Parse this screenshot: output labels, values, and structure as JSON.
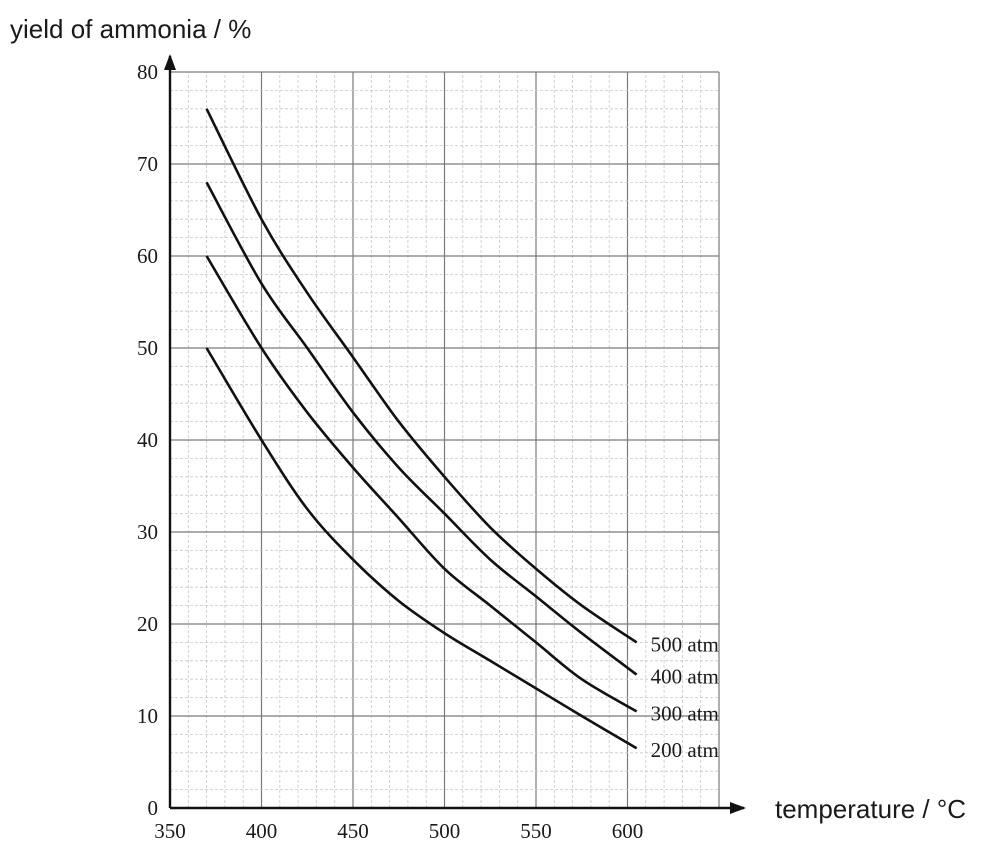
{
  "chart_data": {
    "type": "line",
    "ylabel": "yield of ammonia / %",
    "xlabel": "temperature / °C",
    "xlim": [
      350,
      650
    ],
    "ylim": [
      0,
      80
    ],
    "x_ticks": [
      350,
      400,
      450,
      500,
      550,
      600
    ],
    "y_ticks": [
      0,
      10,
      20,
      30,
      40,
      50,
      60,
      70,
      80
    ],
    "grid": true,
    "series": [
      {
        "name": "500 atm",
        "x": [
          370,
          400,
          425,
          450,
          475,
          500,
          525,
          550,
          575,
          605
        ],
        "y": [
          76,
          64,
          56,
          49,
          42,
          36,
          30.5,
          26,
          22,
          18
        ]
      },
      {
        "name": "400 atm",
        "x": [
          370,
          400,
          425,
          450,
          475,
          500,
          525,
          550,
          575,
          605
        ],
        "y": [
          68,
          57,
          50,
          43,
          37,
          32,
          27,
          23,
          19,
          14.5
        ]
      },
      {
        "name": "300 atm",
        "x": [
          370,
          400,
          425,
          450,
          475,
          500,
          525,
          550,
          575,
          605
        ],
        "y": [
          60,
          50,
          43,
          37,
          31.5,
          26,
          22,
          18,
          14,
          10.5
        ]
      },
      {
        "name": "200 atm",
        "x": [
          370,
          400,
          425,
          450,
          475,
          500,
          525,
          550,
          575,
          605
        ],
        "y": [
          50,
          40,
          32.5,
          27,
          22.5,
          19,
          16,
          13,
          10,
          6.5
        ]
      }
    ]
  }
}
